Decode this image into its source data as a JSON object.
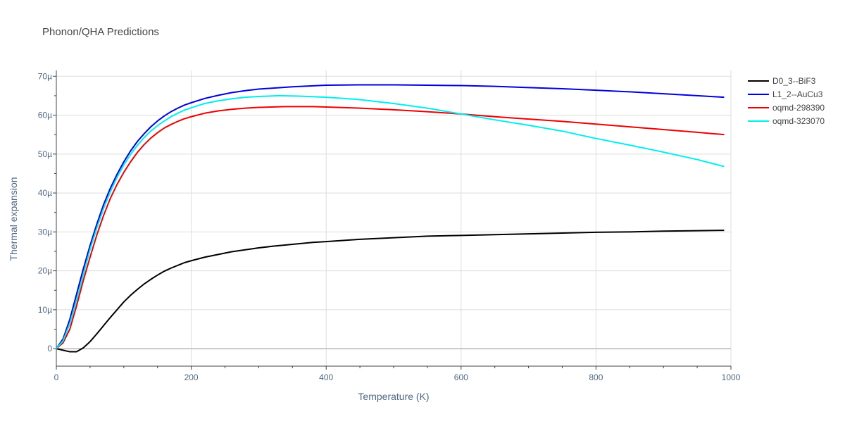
{
  "chart_data": {
    "type": "line",
    "title": "Phonon/QHA Predictions",
    "xlabel": "Temperature (K)",
    "ylabel": "Thermal expansion",
    "xlim": [
      0,
      1000
    ],
    "ylim": [
      -4.5,
      71.5
    ],
    "x_ticks": [
      0,
      200,
      400,
      600,
      800,
      1000
    ],
    "x_tick_labels": [
      "0",
      "200",
      "400",
      "600",
      "800",
      "1000"
    ],
    "y_ticks": [
      0,
      10,
      20,
      30,
      40,
      50,
      60,
      70
    ],
    "y_tick_labels": [
      "0",
      "10µ",
      "20µ",
      "30µ",
      "40µ",
      "50µ",
      "60µ",
      "70µ"
    ],
    "y_unit": "µ (×1e-6)",
    "grid": true,
    "legend_position": "top-right",
    "series": [
      {
        "name": "D0_3--BiF3",
        "color": "#000000",
        "x": [
          0,
          10,
          20,
          30,
          40,
          50,
          60,
          70,
          80,
          90,
          100,
          110,
          120,
          130,
          140,
          150,
          160,
          170,
          180,
          190,
          200,
          220,
          240,
          260,
          280,
          300,
          320,
          350,
          380,
          400,
          450,
          500,
          550,
          600,
          650,
          700,
          750,
          800,
          850,
          900,
          950,
          990
        ],
        "y": [
          0,
          -0.4,
          -0.8,
          -0.8,
          0.2,
          1.8,
          3.8,
          5.9,
          8.0,
          10.0,
          12.0,
          13.7,
          15.2,
          16.6,
          17.8,
          18.9,
          19.9,
          20.7,
          21.4,
          22.1,
          22.6,
          23.5,
          24.2,
          24.9,
          25.4,
          25.9,
          26.3,
          26.8,
          27.3,
          27.5,
          28.1,
          28.5,
          28.9,
          29.1,
          29.3,
          29.5,
          29.7,
          29.9,
          30.0,
          30.2,
          30.3,
          30.4
        ]
      },
      {
        "name": "L1_2--AuCu3",
        "color": "#0000dd",
        "x": [
          0,
          10,
          20,
          30,
          40,
          50,
          60,
          70,
          80,
          90,
          100,
          110,
          120,
          130,
          140,
          150,
          160,
          170,
          180,
          190,
          200,
          220,
          240,
          260,
          280,
          300,
          350,
          400,
          450,
          500,
          550,
          600,
          650,
          700,
          750,
          800,
          850,
          900,
          950,
          990
        ],
        "y": [
          0,
          2.5,
          7.5,
          14,
          20.5,
          26.5,
          32,
          37,
          41.2,
          44.8,
          48,
          50.8,
          53.2,
          55.2,
          57,
          58.5,
          59.8,
          60.9,
          61.8,
          62.6,
          63.2,
          64.3,
          65.1,
          65.8,
          66.3,
          66.7,
          67.3,
          67.7,
          67.8,
          67.8,
          67.7,
          67.6,
          67.4,
          67.1,
          66.8,
          66.4,
          66.0,
          65.5,
          65.0,
          64.6
        ]
      },
      {
        "name": "oqmd-298390",
        "color": "#ee0000",
        "x": [
          0,
          10,
          20,
          30,
          40,
          50,
          60,
          70,
          80,
          90,
          100,
          110,
          120,
          130,
          140,
          150,
          160,
          170,
          180,
          190,
          200,
          220,
          240,
          260,
          280,
          300,
          340,
          380,
          400,
          450,
          500,
          550,
          600,
          650,
          700,
          750,
          800,
          850,
          900,
          950,
          990
        ],
        "y": [
          0,
          1.5,
          5.0,
          11.0,
          17.5,
          23.5,
          29.2,
          34.2,
          38.6,
          42.2,
          45.3,
          48.0,
          50.4,
          52.4,
          54.1,
          55.5,
          56.7,
          57.6,
          58.4,
          59.1,
          59.6,
          60.5,
          61.1,
          61.5,
          61.8,
          62.0,
          62.2,
          62.2,
          62.1,
          61.8,
          61.4,
          60.9,
          60.3,
          59.6,
          59.0,
          58.4,
          57.7,
          57.0,
          56.3,
          55.6,
          55.0
        ]
      },
      {
        "name": "oqmd-323070",
        "color": "#00eeee",
        "x": [
          0,
          10,
          20,
          30,
          40,
          50,
          60,
          70,
          80,
          90,
          100,
          110,
          120,
          130,
          140,
          150,
          160,
          170,
          180,
          190,
          200,
          220,
          240,
          260,
          280,
          300,
          330,
          360,
          400,
          450,
          500,
          550,
          600,
          650,
          700,
          750,
          800,
          850,
          900,
          950,
          990
        ],
        "y": [
          0,
          2.0,
          6.5,
          12.5,
          19.0,
          25.5,
          31.0,
          36.0,
          40.3,
          44.0,
          47.2,
          49.9,
          52.2,
          54.2,
          55.9,
          57.3,
          58.5,
          59.6,
          60.5,
          61.3,
          61.9,
          63.0,
          63.7,
          64.2,
          64.6,
          64.8,
          65.0,
          64.9,
          64.6,
          64.0,
          63.0,
          61.8,
          60.3,
          58.8,
          57.4,
          55.9,
          54.0,
          52.3,
          50.5,
          48.6,
          46.8
        ]
      }
    ]
  }
}
